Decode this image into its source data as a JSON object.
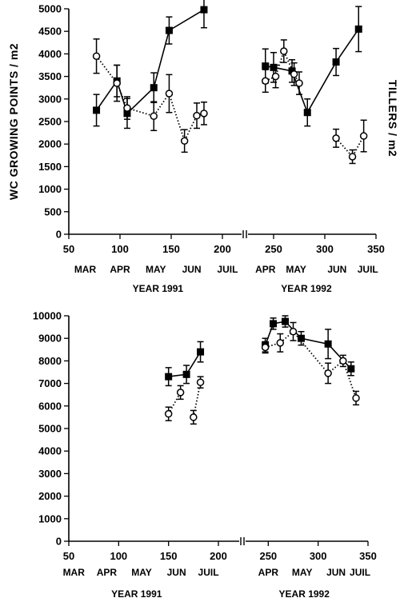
{
  "figure": {
    "ylabel_left": "WC GROWING POINTS / m2",
    "ylabel_right": "TILLERS / m2"
  },
  "chart_data": [
    {
      "type": "scatter",
      "panel": "top",
      "ylabel": "WC GROWING POINTS / m2",
      "ylabel_right": "TILLERS / m2",
      "ylim": [
        0,
        5000
      ],
      "yticks": [
        0,
        500,
        1000,
        1500,
        2000,
        2500,
        3000,
        3500,
        4000,
        4500,
        5000
      ],
      "xlim": [
        50,
        350
      ],
      "xticks": [
        50,
        100,
        150,
        200,
        250,
        300,
        350
      ],
      "axis_break": true,
      "months": [
        {
          "label": "MAR",
          "x": 66
        },
        {
          "label": "APR",
          "x": 100
        },
        {
          "label": "MAY",
          "x": 135
        },
        {
          "label": "JUN",
          "x": 170
        },
        {
          "label": "JUIL",
          "x": 205
        },
        {
          "label": "APR",
          "x": 242
        },
        {
          "label": "MAY",
          "x": 272
        },
        {
          "label": "JUN",
          "x": 312
        },
        {
          "label": "JUIL",
          "x": 342
        }
      ],
      "years": [
        {
          "label": "YEAR 1991",
          "x": 137
        },
        {
          "label": "YEAR 1992",
          "x": 282
        }
      ],
      "series": [
        {
          "marker": "filled-square",
          "line": "solid",
          "segments": [
            [
              {
                "x": 77,
                "y": 2750,
                "err": 350
              },
              {
                "x": 97,
                "y": 3400,
                "err": 350
              },
              {
                "x": 107,
                "y": 2680,
                "err": 330
              },
              {
                "x": 133,
                "y": 3250,
                "err": 330
              },
              {
                "x": 148,
                "y": 4520,
                "err": 300
              },
              {
                "x": 182,
                "y": 4980,
                "err": 400
              }
            ],
            [
              {
                "x": 242,
                "y": 3730,
                "err": 380
              },
              {
                "x": 250,
                "y": 3700,
                "err": 330
              },
              {
                "x": 268,
                "y": 3620,
                "err": 250
              },
              {
                "x": 283,
                "y": 2700,
                "err": 300
              },
              {
                "x": 311,
                "y": 3820,
                "err": 300
              },
              {
                "x": 333,
                "y": 4550,
                "err": 500
              }
            ]
          ]
        },
        {
          "marker": "open-circle",
          "line": "dotted",
          "segments": [
            [
              {
                "x": 77,
                "y": 3950,
                "err": 380
              },
              {
                "x": 97,
                "y": 3350,
                "err": 400
              },
              {
                "x": 107,
                "y": 2800,
                "err": 250
              },
              {
                "x": 133,
                "y": 2620,
                "err": 320
              },
              {
                "x": 148,
                "y": 3120,
                "err": 420
              },
              {
                "x": 163,
                "y": 2070,
                "err": 250
              },
              {
                "x": 175,
                "y": 2630,
                "err": 280
              },
              {
                "x": 182,
                "y": 2680,
                "err": 250
              }
            ],
            [
              {
                "x": 242,
                "y": 3400,
                "err": 250
              },
              {
                "x": 252,
                "y": 3500,
                "err": 250
              },
              {
                "x": 260,
                "y": 4060,
                "err": 250
              },
              {
                "x": 270,
                "y": 3550,
                "err": 250
              },
              {
                "x": 275,
                "y": 3350,
                "err": 250
              }
            ],
            [
              {
                "x": 311,
                "y": 2130,
                "err": 200
              },
              {
                "x": 327,
                "y": 1720,
                "err": 150
              },
              {
                "x": 338,
                "y": 2180,
                "err": 350
              }
            ]
          ]
        }
      ]
    },
    {
      "type": "scatter",
      "panel": "bottom",
      "ylim": [
        0,
        10000
      ],
      "yticks": [
        0,
        1000,
        2000,
        3000,
        4000,
        5000,
        6000,
        7000,
        8000,
        9000,
        10000
      ],
      "xlim": [
        50,
        350
      ],
      "xticks": [
        50,
        100,
        150,
        200,
        250,
        300,
        350
      ],
      "axis_break": true,
      "months": [
        {
          "label": "MAR",
          "x": 55
        },
        {
          "label": "APR",
          "x": 88
        },
        {
          "label": "MAY",
          "x": 123
        },
        {
          "label": "JUN",
          "x": 158
        },
        {
          "label": "JUIL",
          "x": 190
        },
        {
          "label": "APR",
          "x": 250
        },
        {
          "label": "MAY",
          "x": 284
        },
        {
          "label": "JUN",
          "x": 318
        },
        {
          "label": "JUIL",
          "x": 342
        }
      ],
      "years": [
        {
          "label": "YEAR 1991",
          "x": 118
        },
        {
          "label": "YEAR 1992",
          "x": 286
        }
      ],
      "series": [
        {
          "marker": "filled-square",
          "line": "solid",
          "segments": [
            [
              {
                "x": 150,
                "y": 7300,
                "err": 400
              },
              {
                "x": 168,
                "y": 7400,
                "err": 400
              },
              {
                "x": 182,
                "y": 8400,
                "err": 450
              }
            ],
            [
              {
                "x": 247,
                "y": 8700,
                "err": 300
              },
              {
                "x": 255,
                "y": 9650,
                "err": 250
              },
              {
                "x": 267,
                "y": 9750,
                "err": 250
              },
              {
                "x": 283,
                "y": 9000,
                "err": 300
              },
              {
                "x": 310,
                "y": 8750,
                "err": 650
              },
              {
                "x": 333,
                "y": 7650,
                "err": 300
              }
            ]
          ]
        },
        {
          "marker": "open-circle",
          "line": "dotted",
          "segments": [
            [
              {
                "x": 150,
                "y": 5650,
                "err": 300
              },
              {
                "x": 162,
                "y": 6600,
                "err": 300
              }
            ],
            [
              {
                "x": 175,
                "y": 5500,
                "err": 300
              },
              {
                "x": 182,
                "y": 7050,
                "err": 250
              }
            ],
            [
              {
                "x": 247,
                "y": 8600,
                "err": 250
              },
              {
                "x": 262,
                "y": 8800,
                "err": 400
              },
              {
                "x": 275,
                "y": 9300,
                "err": 400
              },
              {
                "x": 310,
                "y": 7450,
                "err": 450
              },
              {
                "x": 325,
                "y": 8000,
                "err": 250
              },
              {
                "x": 338,
                "y": 6350,
                "err": 300
              }
            ]
          ]
        }
      ]
    }
  ]
}
